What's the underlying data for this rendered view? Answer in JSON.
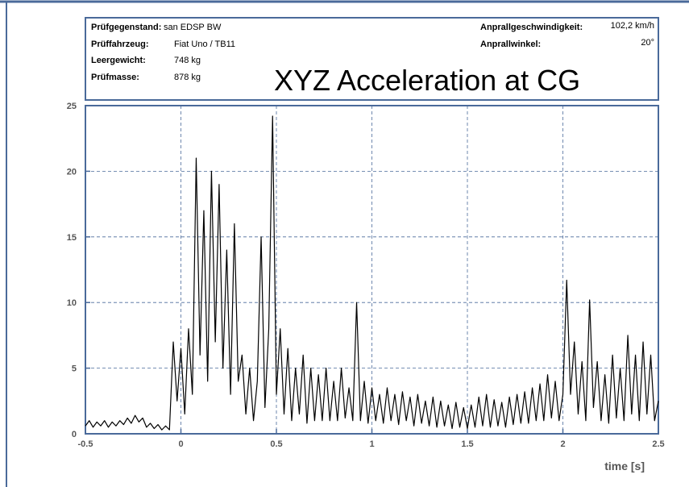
{
  "header": {
    "left": [
      {
        "label": "Prüfgegenstand:",
        "value": "san EDSP BW"
      },
      {
        "label": "Prüffahrzeug:",
        "value": "Fiat Uno / TB11"
      },
      {
        "label": "Leergewicht:",
        "value": "748 kg"
      },
      {
        "label": "Prüfmasse:",
        "value": "878 kg"
      }
    ],
    "right": [
      {
        "label": "Anprallgeschwindigkeit:",
        "value": "102,2 km/h"
      },
      {
        "label": "Anprallwinkel:",
        "value": "20°"
      }
    ]
  },
  "chart_data": {
    "type": "line",
    "title": "XYZ Acceleration at CG",
    "x_label": "time [s]",
    "xlim": [
      -0.5,
      2.5
    ],
    "xticks": [
      -0.5,
      0,
      0.5,
      1,
      1.5,
      2,
      2.5
    ],
    "ylim": [
      0,
      25
    ],
    "yticks": [
      0,
      5,
      10,
      15,
      20,
      25
    ],
    "grid": true,
    "series": [
      {
        "color": "#000000",
        "x": [
          -0.5,
          -0.48,
          -0.46,
          -0.44,
          -0.42,
          -0.4,
          -0.38,
          -0.36,
          -0.34,
          -0.32,
          -0.3,
          -0.28,
          -0.26,
          -0.24,
          -0.22,
          -0.2,
          -0.18,
          -0.16,
          -0.14,
          -0.12,
          -0.1,
          -0.08,
          -0.06,
          -0.04,
          -0.02,
          0,
          0.02,
          0.04,
          0.06,
          0.08,
          0.1,
          0.12,
          0.14,
          0.16,
          0.18,
          0.2,
          0.22,
          0.24,
          0.26,
          0.28,
          0.3,
          0.32,
          0.34,
          0.36,
          0.38,
          0.4,
          0.42,
          0.44,
          0.46,
          0.48,
          0.5,
          0.52,
          0.54,
          0.56,
          0.58,
          0.6,
          0.62,
          0.64,
          0.66,
          0.68,
          0.7,
          0.72,
          0.74,
          0.76,
          0.78,
          0.8,
          0.82,
          0.84,
          0.86,
          0.88,
          0.9,
          0.92,
          0.94,
          0.96,
          0.98,
          1,
          1.02,
          1.04,
          1.06,
          1.08,
          1.1,
          1.12,
          1.14,
          1.16,
          1.18,
          1.2,
          1.22,
          1.24,
          1.26,
          1.28,
          1.3,
          1.32,
          1.34,
          1.36,
          1.38,
          1.4,
          1.42,
          1.44,
          1.46,
          1.48,
          1.5,
          1.52,
          1.54,
          1.56,
          1.58,
          1.6,
          1.62,
          1.64,
          1.66,
          1.68,
          1.7,
          1.72,
          1.74,
          1.76,
          1.78,
          1.8,
          1.82,
          1.84,
          1.86,
          1.88,
          1.9,
          1.92,
          1.94,
          1.96,
          1.98,
          2,
          2.02,
          2.04,
          2.06,
          2.08,
          2.1,
          2.12,
          2.14,
          2.16,
          2.18,
          2.2,
          2.22,
          2.24,
          2.26,
          2.28,
          2.3,
          2.32,
          2.34,
          2.36,
          2.38,
          2.4,
          2.42,
          2.44,
          2.46,
          2.48,
          2.5
        ],
        "values": [
          0.6,
          1.0,
          0.5,
          0.9,
          0.6,
          1.0,
          0.5,
          0.9,
          0.6,
          1.0,
          0.7,
          1.2,
          0.8,
          1.4,
          0.9,
          1.2,
          0.5,
          0.8,
          0.4,
          0.7,
          0.3,
          0.6,
          0.3,
          7.0,
          2.5,
          6.5,
          1.5,
          8.0,
          3.0,
          21.0,
          6.0,
          17.0,
          4.0,
          20.0,
          7.0,
          19.0,
          5.0,
          14.0,
          3.0,
          16.0,
          4.0,
          6.0,
          1.5,
          5.0,
          1.0,
          4.0,
          15.0,
          2.0,
          8.0,
          24.2,
          3.0,
          8.0,
          1.5,
          6.5,
          1.0,
          5.0,
          1.5,
          6.0,
          0.8,
          5.0,
          1.0,
          4.5,
          1.0,
          5.0,
          1.0,
          4.0,
          1.0,
          5.0,
          1.2,
          3.5,
          1.0,
          10.0,
          1.0,
          4.0,
          0.8,
          3.5,
          1.0,
          3.0,
          0.8,
          3.5,
          1.0,
          3.0,
          0.7,
          3.2,
          1.0,
          2.8,
          0.6,
          3.0,
          0.8,
          2.5,
          0.6,
          2.8,
          0.5,
          2.5,
          0.6,
          2.2,
          0.4,
          2.4,
          0.5,
          2.0,
          0.4,
          2.2,
          0.5,
          2.8,
          0.6,
          3.0,
          0.5,
          2.6,
          0.6,
          2.4,
          0.5,
          2.8,
          0.7,
          3.0,
          0.8,
          3.2,
          0.8,
          3.5,
          1.0,
          3.8,
          1.0,
          4.5,
          1.2,
          4.0,
          1.0,
          3.0,
          11.7,
          3.0,
          7.0,
          1.5,
          5.5,
          1.0,
          10.2,
          2.0,
          5.5,
          1.0,
          4.5,
          0.8,
          6.0,
          1.2,
          5.0,
          1.0,
          7.5,
          1.5,
          6.0,
          1.0,
          7.0,
          1.5,
          6.0,
          1.0,
          2.5
        ]
      }
    ]
  }
}
